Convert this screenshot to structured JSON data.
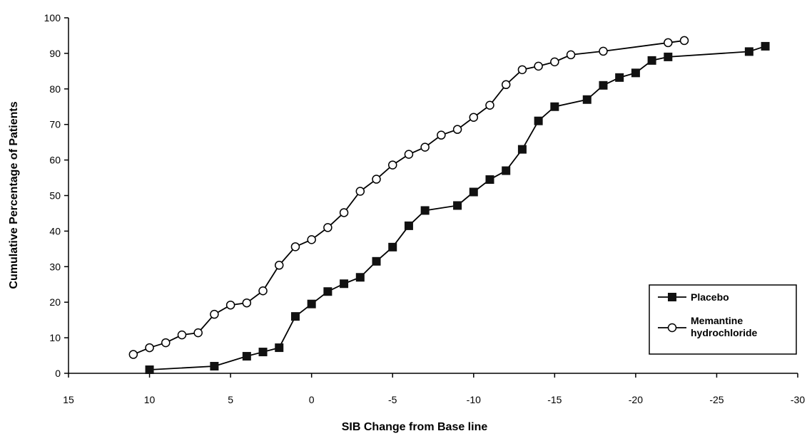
{
  "chart_data": {
    "type": "line",
    "xlabel": "SIB Change from Base line",
    "ylabel": "Cumulative Percentage of Patients",
    "xlim": [
      15,
      -30
    ],
    "ylim": [
      0,
      100
    ],
    "x_ticks": [
      15,
      10,
      5,
      0,
      -5,
      -10,
      -15,
      -20,
      -25,
      -30
    ],
    "y_ticks": [
      0,
      10,
      20,
      30,
      40,
      50,
      60,
      70,
      80,
      90,
      100
    ],
    "grid": false,
    "legend_position": "bottom-right",
    "series": [
      {
        "name": "Placebo",
        "marker": "filled-square",
        "color": "#000000",
        "points": [
          [
            10,
            1
          ],
          [
            6,
            2
          ],
          [
            4,
            4.8
          ],
          [
            3,
            6
          ],
          [
            2,
            7.2
          ],
          [
            1,
            16
          ],
          [
            0,
            19.5
          ],
          [
            -1,
            23
          ],
          [
            -2,
            25.2
          ],
          [
            -3,
            27
          ],
          [
            -4,
            31.5
          ],
          [
            -5,
            35.5
          ],
          [
            -6,
            41.5
          ],
          [
            -7,
            45.8
          ],
          [
            -9,
            47.2
          ],
          [
            -10,
            51
          ],
          [
            -11,
            54.5
          ],
          [
            -12,
            57
          ],
          [
            -13,
            63
          ],
          [
            -14,
            71
          ],
          [
            -15,
            75
          ],
          [
            -17,
            77
          ],
          [
            -18,
            81
          ],
          [
            -19,
            83.2
          ],
          [
            -20,
            84.5
          ],
          [
            -21,
            88
          ],
          [
            -22,
            89
          ],
          [
            -27,
            90.5
          ],
          [
            -28,
            92
          ]
        ]
      },
      {
        "name": "Memantine hydrochloride",
        "name_lines": [
          "Memantine",
          "hydrochloride"
        ],
        "marker": "open-circle",
        "color": "#000000",
        "points": [
          [
            11,
            5.3
          ],
          [
            10,
            7.2
          ],
          [
            9,
            8.6
          ],
          [
            8,
            10.8
          ],
          [
            7,
            11.4
          ],
          [
            6,
            16.6
          ],
          [
            5,
            19.2
          ],
          [
            4,
            19.8
          ],
          [
            3,
            23.2
          ],
          [
            2,
            30.4
          ],
          [
            1,
            35.6
          ],
          [
            0,
            37.6
          ],
          [
            -1,
            41
          ],
          [
            -2,
            45.2
          ],
          [
            -3,
            51.2
          ],
          [
            -4,
            54.6
          ],
          [
            -5,
            58.6
          ],
          [
            -6,
            61.6
          ],
          [
            -7,
            63.6
          ],
          [
            -8,
            67
          ],
          [
            -9,
            68.6
          ],
          [
            -10,
            72
          ],
          [
            -11,
            75.4
          ],
          [
            -12,
            81.2
          ],
          [
            -13,
            85.4
          ],
          [
            -14,
            86.4
          ],
          [
            -15,
            87.6
          ],
          [
            -16,
            89.6
          ],
          [
            -18,
            90.6
          ],
          [
            -22,
            93
          ],
          [
            -23,
            93.6
          ]
        ]
      }
    ]
  }
}
